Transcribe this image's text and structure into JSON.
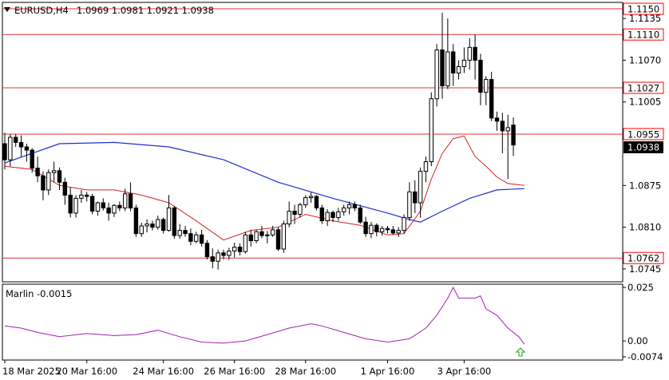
{
  "header": {
    "symbol_label": "EURUSD,H4",
    "ohlc_label": "1.0969 1.0981 1.0921 1.0938"
  },
  "indicator": {
    "label": "Marlin -0.0015",
    "axis_labels": [
      "0.025",
      "0.00",
      "-0.0074"
    ],
    "signal_icon": "up-arrow-icon"
  },
  "price_axis": {
    "tick_labels": [
      "1.1135",
      "1.1070",
      "1.1005",
      "1.0875",
      "1.0810",
      "1.0745"
    ],
    "current_price": "1.0938"
  },
  "levels": [
    {
      "value": "1.1150"
    },
    {
      "value": "1.1110"
    },
    {
      "value": "1.1027"
    },
    {
      "value": "1.0955"
    },
    {
      "value": "1.0762"
    }
  ],
  "time_axis": {
    "labels": [
      "18 Mar 2025",
      "20 Mar 16:00",
      "24 Mar 16:00",
      "26 Mar 16:00",
      "28 Mar 16:00",
      "1 Apr 16:00",
      "3 Apr 16:00"
    ]
  },
  "colors": {
    "level_line": "#e03030",
    "level_box": "#ff0000",
    "bullish_fill": "#ffffff",
    "candle_outline": "#000000",
    "blue_ma": "#1f2fd0",
    "red_ma": "#d62020",
    "oscillator": "#a020b0",
    "signal_arrow": "#22aa22",
    "current_price_box": "#000000"
  },
  "chart_data": {
    "type": "candlestick",
    "title": "EURUSD,H4",
    "ylim": [
      1.0725,
      1.116
    ],
    "candles": [
      [
        1.094,
        1.0957,
        1.09,
        1.0915
      ],
      [
        1.0915,
        1.0955,
        1.0905,
        1.095
      ],
      [
        1.095,
        1.0955,
        1.0935,
        1.0942
      ],
      [
        1.0942,
        1.0953,
        1.092,
        1.0935
      ],
      [
        1.0935,
        1.094,
        1.0912,
        1.093
      ],
      [
        1.093,
        1.0933,
        1.0895,
        1.0902
      ],
      [
        1.0902,
        1.092,
        1.088,
        1.089
      ],
      [
        1.089,
        1.0897,
        1.0852,
        1.0868
      ],
      [
        1.0868,
        1.09,
        1.086,
        1.0895
      ],
      [
        1.0895,
        1.0912,
        1.088,
        1.0898
      ],
      [
        1.0898,
        1.0903,
        1.0868,
        1.088
      ],
      [
        1.088,
        1.0887,
        1.0845,
        1.086
      ],
      [
        1.086,
        1.0872,
        1.0825,
        1.0832
      ],
      [
        1.0832,
        1.086,
        1.0825,
        1.0855
      ],
      [
        1.0855,
        1.0868,
        1.0848,
        1.086
      ],
      [
        1.086,
        1.0865,
        1.085,
        1.0858
      ],
      [
        1.0858,
        1.0862,
        1.083,
        1.0835
      ],
      [
        1.0835,
        1.085,
        1.0828,
        1.0848
      ],
      [
        1.0848,
        1.0855,
        1.0836,
        1.084
      ],
      [
        1.084,
        1.0848,
        1.082,
        1.0832
      ],
      [
        1.0832,
        1.0846,
        1.0826,
        1.0844
      ],
      [
        1.0844,
        1.085,
        1.0835,
        1.084
      ],
      [
        1.084,
        1.087,
        1.0835,
        1.0862
      ],
      [
        1.0862,
        1.088,
        1.0835,
        1.084
      ],
      [
        1.084,
        1.0845,
        1.0795,
        1.08
      ],
      [
        1.08,
        1.0817,
        1.0795,
        1.0812
      ],
      [
        1.0812,
        1.0822,
        1.0802,
        1.0815
      ],
      [
        1.0815,
        1.082,
        1.0805,
        1.081
      ],
      [
        1.081,
        1.0828,
        1.0806,
        1.0822
      ],
      [
        1.0822,
        1.0825,
        1.08,
        1.0805
      ],
      [
        1.0805,
        1.086,
        1.0803,
        1.084
      ],
      [
        1.084,
        1.0843,
        1.0792,
        1.0797
      ],
      [
        1.0797,
        1.0815,
        1.0792,
        1.0805
      ],
      [
        1.0805,
        1.0812,
        1.0795,
        1.08
      ],
      [
        1.08,
        1.0808,
        1.0782,
        1.0788
      ],
      [
        1.0788,
        1.0803,
        1.0785,
        1.0798
      ],
      [
        1.0798,
        1.0806,
        1.078,
        1.0785
      ],
      [
        1.0785,
        1.079,
        1.076,
        1.0764
      ],
      [
        1.0764,
        1.0777,
        1.0746,
        1.0757
      ],
      [
        1.0757,
        1.0775,
        1.0744,
        1.077
      ],
      [
        1.077,
        1.0775,
        1.076,
        1.0766
      ],
      [
        1.0766,
        1.0778,
        1.0759,
        1.0773
      ],
      [
        1.0773,
        1.0786,
        1.0763,
        1.0779
      ],
      [
        1.0779,
        1.0785,
        1.0766,
        1.0772
      ],
      [
        1.0772,
        1.0803,
        1.0769,
        1.0798
      ],
      [
        1.0798,
        1.0806,
        1.078,
        1.0789
      ],
      [
        1.0789,
        1.0806,
        1.0785,
        1.0803
      ],
      [
        1.0803,
        1.0812,
        1.0793,
        1.0797
      ],
      [
        1.0797,
        1.0804,
        1.0785,
        1.0798
      ],
      [
        1.0798,
        1.0812,
        1.0795,
        1.0806
      ],
      [
        1.0806,
        1.081,
        1.0773,
        1.0776
      ],
      [
        1.0776,
        1.082,
        1.077,
        1.0815
      ],
      [
        1.0815,
        1.085,
        1.081,
        1.0835
      ],
      [
        1.0835,
        1.0845,
        1.0815,
        1.083
      ],
      [
        1.083,
        1.0848,
        1.0825,
        1.0845
      ],
      [
        1.0845,
        1.086,
        1.084,
        1.0856
      ],
      [
        1.0856,
        1.0864,
        1.0848,
        1.0858
      ],
      [
        1.0858,
        1.086,
        1.0836,
        1.084
      ],
      [
        1.084,
        1.0845,
        1.0815,
        1.082
      ],
      [
        1.082,
        1.0838,
        1.0812,
        1.0833
      ],
      [
        1.0833,
        1.0836,
        1.0818,
        1.0825
      ],
      [
        1.0825,
        1.084,
        1.082,
        1.0834
      ],
      [
        1.0834,
        1.0845,
        1.0828,
        1.084
      ],
      [
        1.084,
        1.085,
        1.083,
        1.0845
      ],
      [
        1.0845,
        1.085,
        1.0835,
        1.084
      ],
      [
        1.084,
        1.0845,
        1.0815,
        1.0818
      ],
      [
        1.0818,
        1.0826,
        1.0795,
        1.08
      ],
      [
        1.08,
        1.0818,
        1.0793,
        1.0813
      ],
      [
        1.0813,
        1.0816,
        1.0796,
        1.0803
      ],
      [
        1.0803,
        1.0812,
        1.0797,
        1.0808
      ],
      [
        1.0808,
        1.0812,
        1.08,
        1.0806
      ],
      [
        1.0806,
        1.0812,
        1.0798,
        1.0801
      ],
      [
        1.0801,
        1.081,
        1.0795,
        1.0805
      ],
      [
        1.0805,
        1.083,
        1.08,
        1.0825
      ],
      [
        1.0825,
        1.088,
        1.082,
        1.0865
      ],
      [
        1.0865,
        1.0883,
        1.0832,
        1.0848
      ],
      [
        1.0848,
        1.0903,
        1.0825,
        1.0897
      ],
      [
        1.0897,
        1.092,
        1.088,
        1.0912
      ],
      [
        1.0912,
        1.102,
        1.0905,
        1.101
      ],
      [
        1.101,
        1.1095,
        1.0998,
        1.1086
      ],
      [
        1.1086,
        1.1144,
        1.101,
        1.103
      ],
      [
        1.103,
        1.1135,
        1.1025,
        1.1083
      ],
      [
        1.1083,
        1.1095,
        1.103,
        1.105
      ],
      [
        1.105,
        1.107,
        1.104,
        1.106
      ],
      [
        1.106,
        1.109,
        1.105,
        1.107
      ],
      [
        1.107,
        1.1104,
        1.1055,
        1.109
      ],
      [
        1.109,
        1.111,
        1.104,
        1.107
      ],
      [
        1.107,
        1.108,
        1.1,
        1.102
      ],
      [
        1.102,
        1.1045,
        1.1,
        1.104
      ],
      [
        1.104,
        1.1052,
        1.0975,
        1.098
      ],
      [
        1.098,
        1.099,
        1.096,
        1.0975
      ],
      [
        1.0975,
        1.0988,
        1.0925,
        1.096
      ],
      [
        1.096,
        1.0985,
        1.0885,
        1.0965
      ],
      [
        1.0969,
        1.0981,
        1.0921,
        1.0938
      ]
    ],
    "ma_blue": [
      [
        0,
        1.091
      ],
      [
        10,
        1.094
      ],
      [
        20,
        1.0942
      ],
      [
        30,
        1.0935
      ],
      [
        40,
        1.0915
      ],
      [
        50,
        1.088
      ],
      [
        60,
        1.0855
      ],
      [
        70,
        1.0832
      ],
      [
        74,
        1.0822
      ],
      [
        76,
        1.0818
      ],
      [
        80,
        1.0835
      ],
      [
        85,
        1.0855
      ],
      [
        90,
        1.0868
      ],
      [
        95,
        1.087
      ]
    ],
    "ma_red": [
      [
        0,
        1.0905
      ],
      [
        5,
        1.09
      ],
      [
        10,
        1.0875
      ],
      [
        15,
        1.0868
      ],
      [
        20,
        1.0868
      ],
      [
        25,
        1.086
      ],
      [
        30,
        1.0848
      ],
      [
        35,
        1.082
      ],
      [
        40,
        1.079
      ],
      [
        45,
        1.0805
      ],
      [
        50,
        1.081
      ],
      [
        55,
        1.083
      ],
      [
        60,
        1.082
      ],
      [
        65,
        1.0813
      ],
      [
        70,
        1.0798
      ],
      [
        73,
        1.08
      ],
      [
        76,
        1.0835
      ],
      [
        78,
        1.0885
      ],
      [
        80,
        1.0925
      ],
      [
        82,
        1.0948
      ],
      [
        84,
        1.0952
      ],
      [
        86,
        1.092
      ],
      [
        88,
        1.0905
      ],
      [
        90,
        1.0888
      ],
      [
        92,
        1.0878
      ],
      [
        95,
        1.0875
      ]
    ],
    "oscillator": {
      "ylim": [
        -0.0074,
        0.025
      ],
      "points": [
        [
          0,
          0.007
        ],
        [
          3,
          0.006
        ],
        [
          6,
          0.004
        ],
        [
          10,
          0.002
        ],
        [
          15,
          0.0035
        ],
        [
          20,
          0.0025
        ],
        [
          24,
          0.003
        ],
        [
          28,
          0.005
        ],
        [
          32,
          0.002
        ],
        [
          36,
          -0.0005
        ],
        [
          40,
          -0.001
        ],
        [
          44,
          0.0
        ],
        [
          48,
          0.003
        ],
        [
          52,
          0.006
        ],
        [
          56,
          0.008
        ],
        [
          58,
          0.007
        ],
        [
          62,
          0.004
        ],
        [
          66,
          0.001
        ],
        [
          70,
          -0.0005
        ],
        [
          74,
          0.001
        ],
        [
          77,
          0.006
        ],
        [
          79,
          0.012
        ],
        [
          81,
          0.02
        ],
        [
          82,
          0.025
        ],
        [
          83,
          0.02
        ],
        [
          86,
          0.02
        ],
        [
          87,
          0.021
        ],
        [
          88,
          0.015
        ],
        [
          90,
          0.012
        ],
        [
          92,
          0.006
        ],
        [
          94,
          0.002
        ],
        [
          95,
          -0.0015
        ]
      ]
    }
  }
}
